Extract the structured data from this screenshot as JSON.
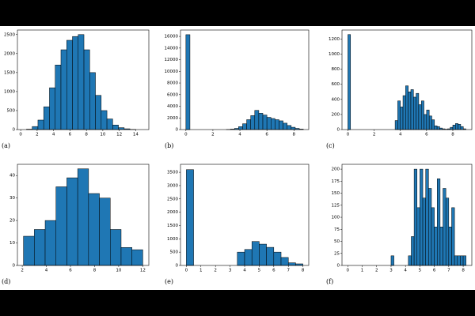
{
  "chart_data": [
    {
      "type": "histogram",
      "label": "(a)",
      "color": "#1f77b4",
      "bins": [
        0.7,
        1.4,
        2.1,
        2.8,
        3.5,
        4.2,
        4.9,
        5.6,
        6.3,
        7.0,
        7.7,
        8.4,
        9.1,
        9.8,
        10.5,
        11.2,
        11.9,
        12.6,
        13.3,
        14.0
      ],
      "counts": [
        10,
        80,
        250,
        600,
        1100,
        1700,
        2100,
        2350,
        2450,
        2500,
        2100,
        1500,
        900,
        500,
        280,
        120,
        50,
        20,
        5
      ],
      "xlim": [
        -0.4,
        15.6
      ],
      "ylim": [
        0,
        2620
      ],
      "xticks": [
        0,
        2,
        4,
        6,
        8,
        10,
        12,
        14
      ],
      "yticks": [
        0,
        500,
        1000,
        1500,
        2000,
        2500
      ]
    },
    {
      "type": "histogram",
      "label": "(b)",
      "color": "#1f77b4",
      "bins": [
        0,
        0.3,
        0.6,
        0.9,
        1.2,
        1.5,
        1.8,
        2.1,
        2.4,
        2.7,
        3.0,
        3.3,
        3.6,
        3.9,
        4.2,
        4.5,
        4.8,
        5.1,
        5.4,
        5.7,
        6.0,
        6.3,
        6.6,
        6.9,
        7.2,
        7.5,
        7.8,
        8.1,
        8.4,
        8.7
      ],
      "counts": [
        16300,
        0,
        0,
        0,
        0,
        0,
        0,
        0,
        0,
        0,
        20,
        80,
        200,
        500,
        1000,
        1700,
        2400,
        3300,
        2800,
        2500,
        2100,
        1900,
        1700,
        1500,
        1100,
        700,
        400,
        200,
        80
      ],
      "xlim": [
        -0.4,
        9.1
      ],
      "ylim": [
        0,
        17100
      ],
      "xticks": [
        0,
        2,
        4,
        6,
        8
      ],
      "yticks": [
        0,
        2000,
        4000,
        6000,
        8000,
        10000,
        12000,
        14000,
        16000
      ]
    },
    {
      "type": "histogram",
      "label": "(c)",
      "color": "#1f77b4",
      "bins": [
        0,
        0.2,
        0.4,
        0.6,
        0.8,
        1.0,
        1.2,
        1.4,
        1.6,
        1.8,
        2.0,
        2.2,
        2.4,
        2.6,
        2.8,
        3.0,
        3.2,
        3.4,
        3.6,
        3.8,
        4.0,
        4.2,
        4.4,
        4.6,
        4.8,
        5.0,
        5.2,
        5.4,
        5.6,
        5.8,
        6.0,
        6.2,
        6.4,
        6.6,
        6.8,
        7.0,
        7.2,
        7.4,
        7.6,
        7.8,
        8.0,
        8.2,
        8.4,
        8.6,
        8.8,
        9.0
      ],
      "counts": [
        1260,
        0,
        0,
        0,
        0,
        0,
        0,
        0,
        0,
        0,
        0,
        0,
        0,
        0,
        0,
        0,
        0,
        0,
        120,
        380,
        300,
        450,
        580,
        500,
        530,
        430,
        480,
        330,
        380,
        200,
        260,
        180,
        130,
        50,
        40,
        20,
        10,
        5,
        10,
        30,
        60,
        80,
        70,
        40,
        10
      ],
      "xlim": [
        -0.45,
        9.45
      ],
      "ylim": [
        0,
        1320
      ],
      "xticks": [
        0,
        2,
        4,
        6,
        8
      ],
      "yticks": [
        0,
        200,
        400,
        600,
        800,
        1000,
        1200
      ]
    },
    {
      "type": "histogram",
      "label": "(d)",
      "color": "#1f77b4",
      "bins": [
        2.1,
        3.0,
        3.9,
        4.8,
        5.7,
        6.6,
        7.5,
        8.4,
        9.3,
        10.2,
        11.1,
        12.0
      ],
      "counts": [
        13,
        16,
        20,
        35,
        39,
        43,
        32,
        30,
        16,
        8,
        7
      ],
      "xlim": [
        1.6,
        12.5
      ],
      "ylim": [
        0,
        45
      ],
      "xticks": [
        2,
        4,
        6,
        8,
        10,
        12
      ],
      "yticks": [
        0,
        10,
        20,
        30,
        40
      ]
    },
    {
      "type": "histogram",
      "label": "(e)",
      "color": "#1f77b4",
      "bins": [
        0,
        0.5,
        1.0,
        1.5,
        2.0,
        2.5,
        3.0,
        3.5,
        4.0,
        4.5,
        5.0,
        5.5,
        6.0,
        6.5,
        7.0,
        7.5,
        8.0
      ],
      "counts": [
        3600,
        0,
        0,
        0,
        0,
        0,
        0,
        500,
        600,
        900,
        800,
        680,
        500,
        300,
        100,
        60
      ],
      "xlim": [
        -0.4,
        8.4
      ],
      "ylim": [
        0,
        3800
      ],
      "xticks": [
        0,
        1,
        2,
        3,
        4,
        5,
        6,
        7,
        8
      ],
      "yticks": [
        0,
        500,
        1000,
        1500,
        2000,
        2500,
        3000,
        3500
      ]
    },
    {
      "type": "histogram",
      "label": "(f)",
      "color": "#1f77b4",
      "bins": [
        0,
        0.2,
        0.4,
        0.6,
        0.8,
        1.0,
        1.2,
        1.4,
        1.6,
        1.8,
        2.0,
        2.2,
        2.4,
        2.6,
        2.8,
        3.0,
        3.2,
        3.4,
        3.6,
        3.8,
        4.0,
        4.2,
        4.4,
        4.6,
        4.8,
        5.0,
        5.2,
        5.4,
        5.6,
        5.8,
        6.0,
        6.2,
        6.4,
        6.6,
        6.8,
        7.0,
        7.2,
        7.4,
        7.6,
        7.8,
        8.0,
        8.2
      ],
      "counts": [
        0,
        0,
        0,
        0,
        0,
        0,
        0,
        0,
        0,
        0,
        0,
        0,
        0,
        0,
        0,
        20,
        0,
        0,
        0,
        0,
        0,
        20,
        60,
        200,
        120,
        200,
        140,
        200,
        160,
        120,
        80,
        180,
        80,
        160,
        140,
        80,
        120,
        20,
        20,
        20,
        20
      ],
      "xlim": [
        -0.4,
        8.6
      ],
      "ylim": [
        0,
        210
      ],
      "xticks": [
        0,
        1,
        2,
        3,
        4,
        5,
        6,
        7,
        8
      ],
      "yticks": [
        0,
        25,
        50,
        75,
        100,
        125,
        150,
        175,
        200
      ]
    }
  ]
}
